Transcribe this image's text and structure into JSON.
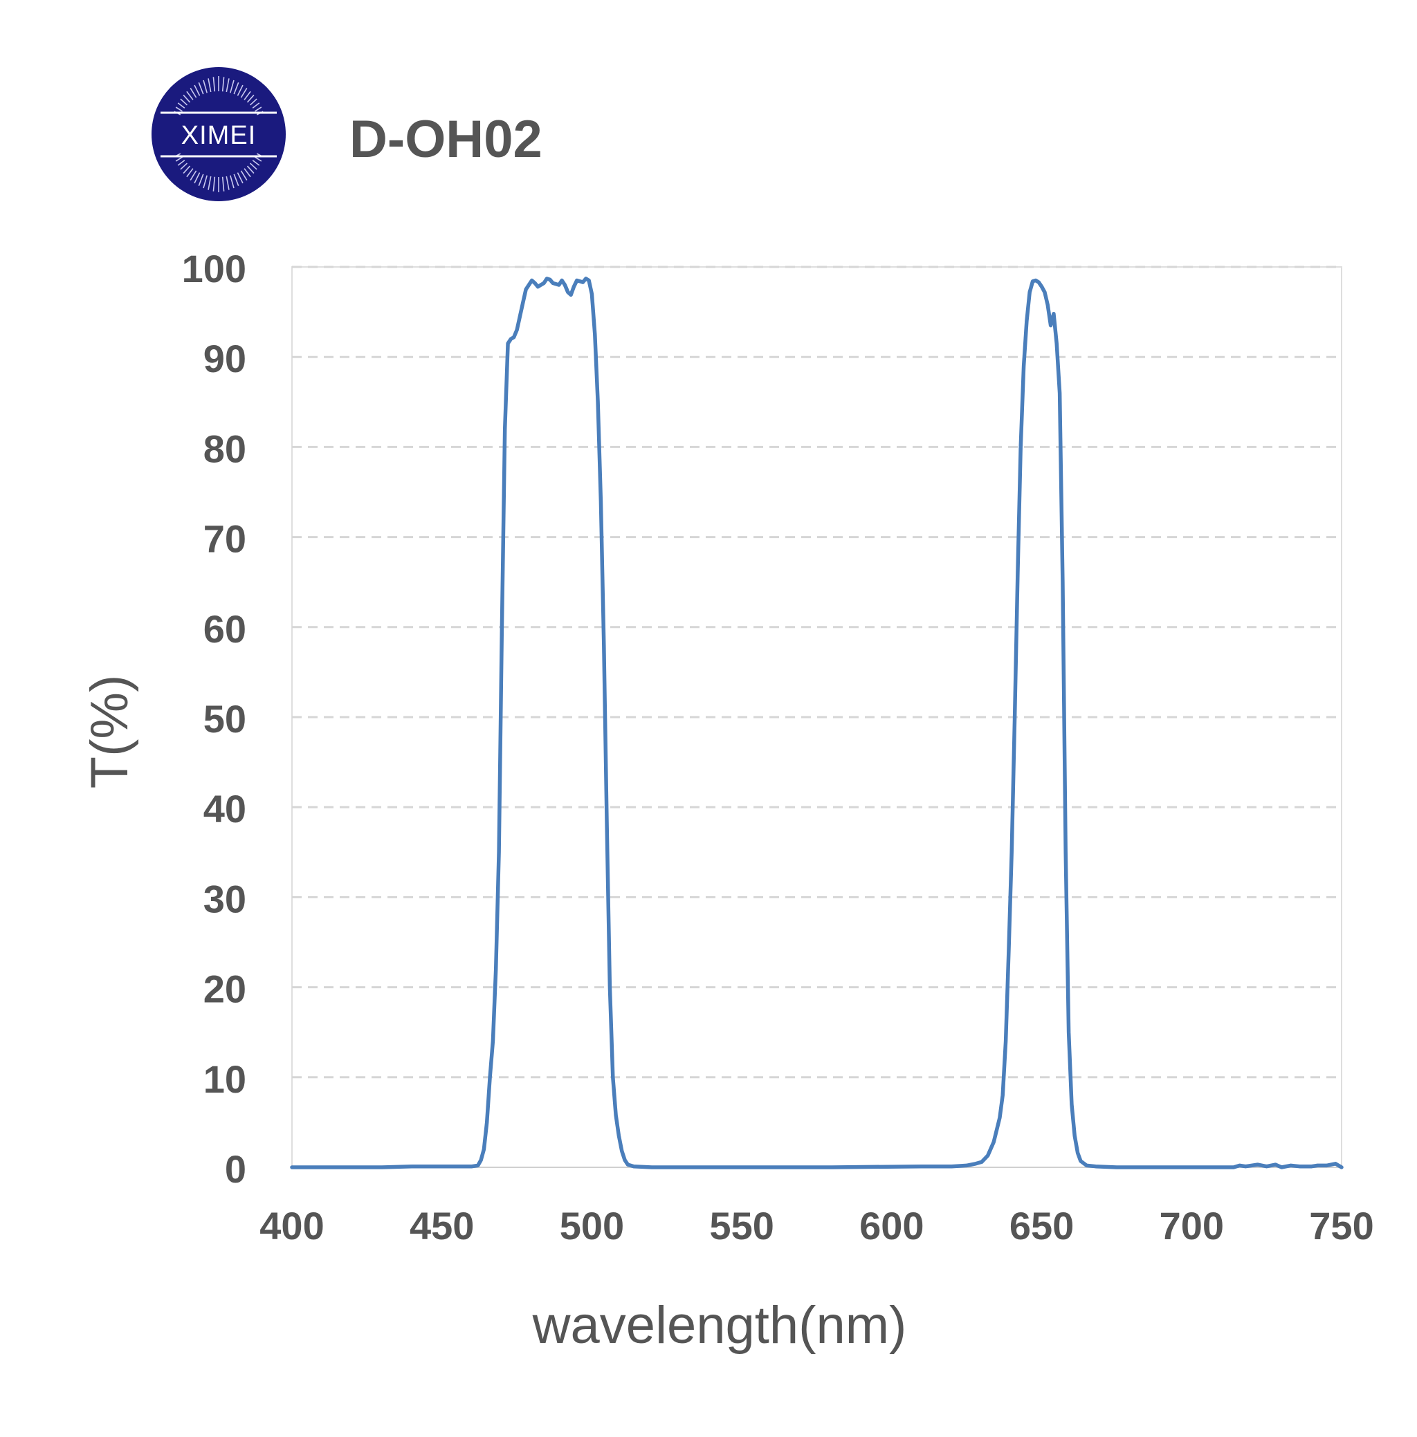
{
  "logo": {
    "text": "XIMEI",
    "color": "#1a1a7e"
  },
  "chart_data": {
    "type": "line",
    "title": "D-OH02",
    "xlabel": "wavelength(nm)",
    "ylabel": "T(%)",
    "xlim": [
      400,
      750
    ],
    "ylim": [
      0,
      100
    ],
    "xticks": [
      400,
      450,
      500,
      550,
      600,
      650,
      700,
      750
    ],
    "yticks": [
      0,
      10,
      20,
      30,
      40,
      50,
      60,
      70,
      80,
      90,
      100
    ],
    "grid": "horizontal dashed",
    "line_color": "#4a7ebb",
    "series": [
      {
        "points": [
          [
            400,
            0
          ],
          [
            430,
            0
          ],
          [
            440,
            0.1
          ],
          [
            450,
            0.1
          ],
          [
            460,
            0.1
          ],
          [
            462,
            0.2
          ],
          [
            463,
            0.8
          ],
          [
            464,
            2
          ],
          [
            465,
            5
          ],
          [
            466,
            10
          ],
          [
            467,
            14
          ],
          [
            468,
            22
          ],
          [
            469,
            35
          ],
          [
            470,
            60
          ],
          [
            471,
            82
          ],
          [
            472,
            91.5
          ],
          [
            473,
            92
          ],
          [
            474,
            92.2
          ],
          [
            475,
            93
          ],
          [
            476,
            94.5
          ],
          [
            477,
            96
          ],
          [
            478,
            97.5
          ],
          [
            480,
            98.5
          ],
          [
            481,
            98.2
          ],
          [
            482,
            97.8
          ],
          [
            484,
            98.2
          ],
          [
            485,
            98.7
          ],
          [
            486,
            98.6
          ],
          [
            487,
            98.2
          ],
          [
            489,
            98.0
          ],
          [
            490,
            98.5
          ],
          [
            491,
            98.0
          ],
          [
            492,
            97.2
          ],
          [
            493,
            96.9
          ],
          [
            494,
            97.8
          ],
          [
            495,
            98.5
          ],
          [
            496,
            98.4
          ],
          [
            497,
            98.3
          ],
          [
            498,
            98.7
          ],
          [
            499,
            98.5
          ],
          [
            500,
            97
          ],
          [
            501,
            92.5
          ],
          [
            502,
            85
          ],
          [
            503,
            74
          ],
          [
            504,
            58
          ],
          [
            505,
            38
          ],
          [
            506,
            20
          ],
          [
            507,
            10
          ],
          [
            508,
            5.8
          ],
          [
            509,
            3.5
          ],
          [
            510,
            1.8
          ],
          [
            511,
            0.8
          ],
          [
            512,
            0.3
          ],
          [
            514,
            0.1
          ],
          [
            520,
            0
          ],
          [
            540,
            0
          ],
          [
            580,
            0
          ],
          [
            610,
            0.1
          ],
          [
            620,
            0.1
          ],
          [
            625,
            0.2
          ],
          [
            628,
            0.4
          ],
          [
            630,
            0.6
          ],
          [
            632,
            1.3
          ],
          [
            634,
            2.8
          ],
          [
            636,
            5.5
          ],
          [
            637,
            8
          ],
          [
            638,
            14
          ],
          [
            639,
            24
          ],
          [
            640,
            35
          ],
          [
            641,
            50
          ],
          [
            642,
            66
          ],
          [
            643,
            80
          ],
          [
            644,
            89
          ],
          [
            645,
            94
          ],
          [
            646,
            97.2
          ],
          [
            647,
            98.4
          ],
          [
            648,
            98.5
          ],
          [
            649,
            98.3
          ],
          [
            650,
            97.8
          ],
          [
            651,
            97.2
          ],
          [
            652,
            95.8
          ],
          [
            653,
            93.5
          ],
          [
            654,
            94.8
          ],
          [
            655,
            91.5
          ],
          [
            656,
            86
          ],
          [
            657,
            65
          ],
          [
            658,
            35
          ],
          [
            659,
            15
          ],
          [
            660,
            7
          ],
          [
            661,
            3.5
          ],
          [
            662,
            1.6
          ],
          [
            663,
            0.7
          ],
          [
            665,
            0.2
          ],
          [
            668,
            0.1
          ],
          [
            675,
            0
          ],
          [
            700,
            0
          ],
          [
            714,
            0
          ],
          [
            716,
            0.2
          ],
          [
            718,
            0.1
          ],
          [
            722,
            0.3
          ],
          [
            725,
            0.1
          ],
          [
            728,
            0.3
          ],
          [
            730,
            0
          ],
          [
            733,
            0.2
          ],
          [
            736,
            0.1
          ],
          [
            740,
            0.1
          ],
          [
            742,
            0.2
          ],
          [
            745,
            0.2
          ],
          [
            748,
            0.4
          ],
          [
            750,
            0
          ]
        ]
      }
    ]
  }
}
